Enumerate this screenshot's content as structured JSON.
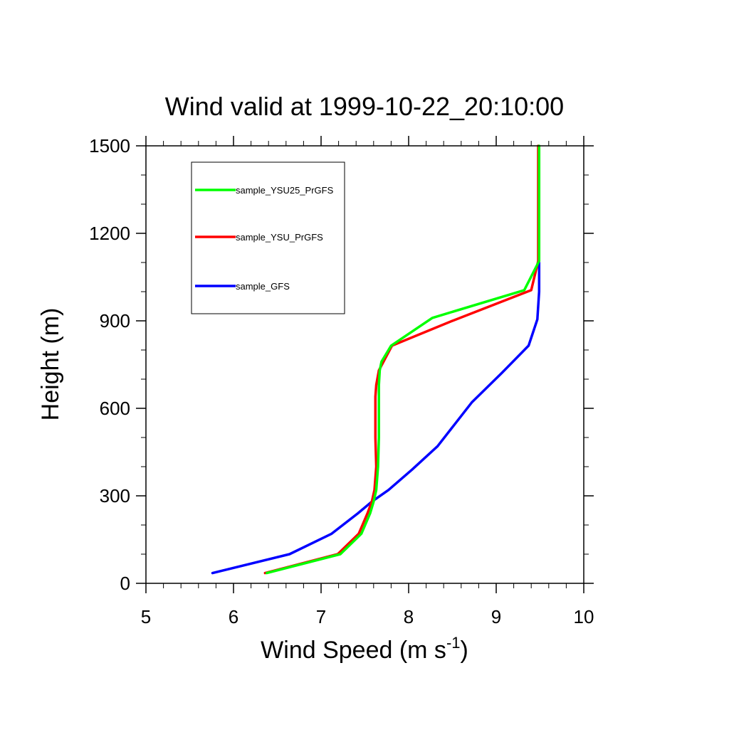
{
  "chart_data": {
    "type": "line",
    "title": "Wind valid at 1999-10-22_20:10:00",
    "xlabel": "Wind Speed (m s",
    "xlabel_sup": "-1",
    "xlabel_tail": ")",
    "ylabel": "Height (m)",
    "xlim": [
      5,
      10
    ],
    "ylim": [
      0,
      1500
    ],
    "xticks": [
      5,
      6,
      7,
      8,
      9,
      10
    ],
    "yticks": [
      0,
      300,
      600,
      900,
      1200,
      1500
    ],
    "grid": false,
    "legend_position": "top-left",
    "series": [
      {
        "name": "sample_YSU25_PrGFS",
        "color": "#00ff00",
        "x": [
          6.38,
          7.22,
          7.46,
          7.56,
          7.6,
          7.63,
          7.65,
          7.66,
          7.66,
          7.66,
          7.66,
          7.67,
          7.69,
          7.8,
          8.27,
          9.32,
          9.49,
          9.49,
          9.49,
          9.49
        ],
        "y": [
          35,
          100,
          170,
          240,
          280,
          320,
          400,
          500,
          560,
          640,
          680,
          730,
          760,
          815,
          910,
          1005,
          1105,
          1200,
          1400,
          1500
        ]
      },
      {
        "name": "sample_YSU_PrGFS",
        "color": "#ff0000",
        "x": [
          6.36,
          7.19,
          7.43,
          7.53,
          7.58,
          7.61,
          7.63,
          7.62,
          7.62,
          7.62,
          7.63,
          7.66,
          7.81,
          8.5,
          9.4,
          9.48,
          9.48,
          9.48
        ],
        "y": [
          35,
          100,
          170,
          240,
          280,
          320,
          400,
          500,
          560,
          640,
          680,
          730,
          815,
          900,
          1005,
          1105,
          1300,
          1500
        ]
      },
      {
        "name": "sample_GFS",
        "color": "#0000ff",
        "x": [
          5.76,
          6.64,
          7.12,
          7.42,
          7.58,
          7.77,
          8.04,
          8.33,
          8.72,
          9.06,
          9.37,
          9.47,
          9.49,
          9.49
        ],
        "y": [
          35,
          100,
          170,
          240,
          280,
          320,
          390,
          470,
          620,
          720,
          815,
          905,
          1000,
          1100
        ]
      }
    ]
  }
}
